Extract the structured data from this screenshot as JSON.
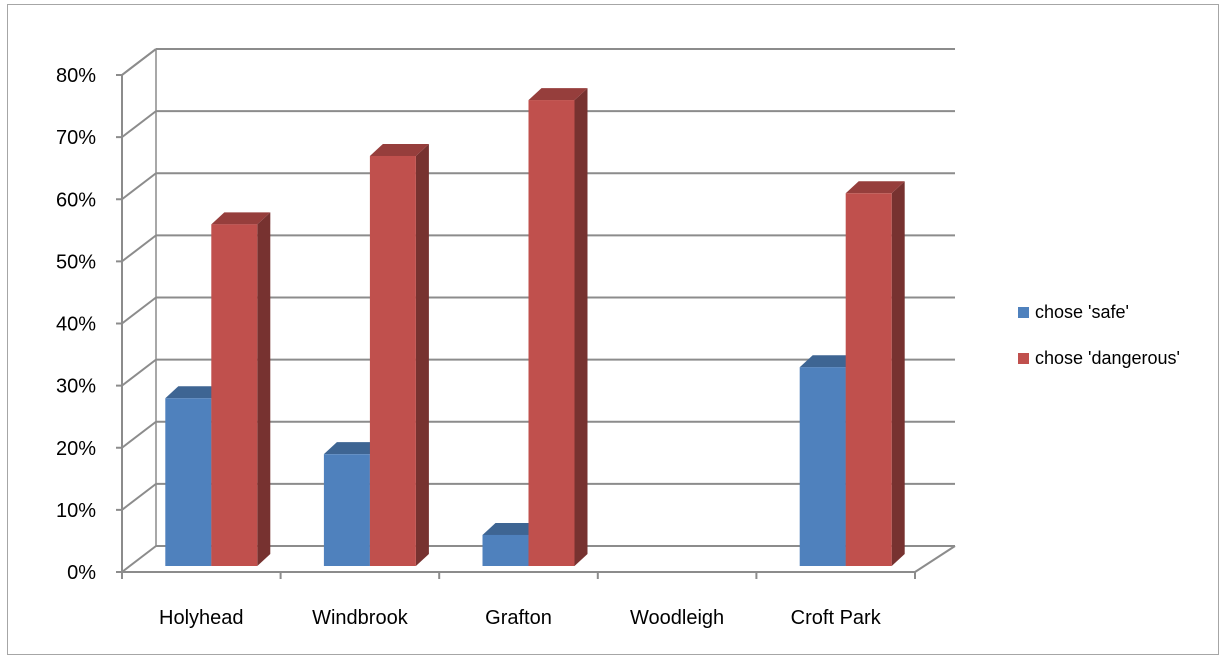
{
  "chart_data": {
    "type": "bar",
    "title": "",
    "xlabel": "",
    "ylabel": "",
    "categories": [
      "Holyhead",
      "Windbrook",
      "Grafton",
      "Woodleigh",
      "Croft Park"
    ],
    "series": [
      {
        "name": "chose 'safe'",
        "values": [
          0.27,
          0.18,
          0.05,
          0,
          0.32
        ],
        "color": "#4f81bd"
      },
      {
        "name": "chose 'dangerous'",
        "values": [
          0.55,
          0.66,
          0.75,
          0,
          0.6
        ],
        "color": "#c0504d"
      }
    ],
    "ylim": [
      0,
      0.8
    ],
    "yticks": [
      0,
      0.1,
      0.2,
      0.3,
      0.4,
      0.5,
      0.6,
      0.7,
      0.8
    ],
    "ytick_labels": [
      "0%",
      "10%",
      "20%",
      "30%",
      "40%",
      "50%",
      "60%",
      "70%",
      "80%"
    ],
    "grid": true,
    "legend_position": "right",
    "style": "3d-clustered-column"
  }
}
